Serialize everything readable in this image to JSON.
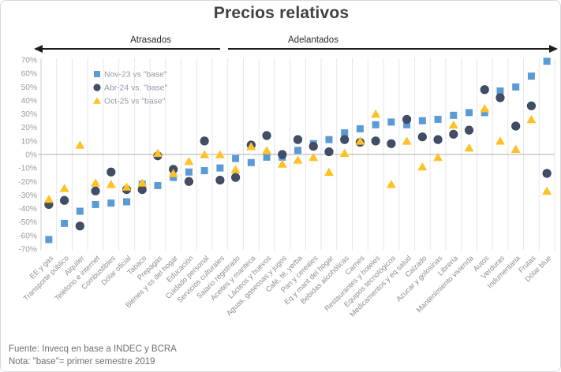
{
  "title": "Precios relativos",
  "annotations": {
    "left_label": "Atrasados",
    "right_label": "Adelantados"
  },
  "legend": [
    {
      "label": "Nov-23 vs \"base\"",
      "marker": "square",
      "color": "#5B9BD5"
    },
    {
      "label": "Abr-24 vs. \"base\"",
      "marker": "circle",
      "color": "#424D66"
    },
    {
      "label": "Oct-25 vs \"base\"",
      "marker": "triangle",
      "color": "#FFC125"
    }
  ],
  "chart_data": {
    "type": "scatter",
    "title": "Precios relativos",
    "xlabel": "",
    "ylabel": "",
    "ylim": [
      -70,
      70
    ],
    "ytick_step": 10,
    "ytick_format": "percent",
    "grid": "vertical-only",
    "zero_line": true,
    "legend_position": "inside-top-left",
    "group_annotations": [
      "Atrasados",
      "Adelantados"
    ],
    "categories": [
      "EE y gas",
      "Transporte público",
      "Alquiler",
      "Teléfono e internet",
      "Combustibles",
      "Dólar oficial",
      "Tabaco",
      "Prepagas",
      "Bienes y ss del hogar",
      "Educación",
      "Cuidado personal",
      "Servicios culturales",
      "Salario registrado",
      "Aceites y manteca",
      "Lácteos y huevos",
      "Aguas, gaseosas y jugos",
      "Café, té, yerba",
      "Pan y cereales",
      "Eq y mant del hogar",
      "Bebidas alcohólicas",
      "Carnes",
      "Restaurantes y hoteles",
      "Equipos tecnológicos",
      "Medicamentos y eq salud",
      "Calzado",
      "Azucar y golosinas",
      "Librería",
      "Mantenimiento vivienda",
      "Autos",
      "Verduras",
      "Indumentaria",
      "Frutas",
      "Dólar blue"
    ],
    "series": [
      {
        "name": "Nov-23 vs \"base\"",
        "marker": "square",
        "color": "#5B9BD5",
        "values": [
          -63,
          -51,
          -42,
          -37,
          -36,
          -35,
          -22,
          -23,
          -17,
          -13,
          -12,
          -10,
          -3,
          -6,
          -2,
          -2,
          3,
          8,
          11,
          16,
          19,
          22,
          24,
          22,
          25,
          26,
          29,
          31,
          31,
          47,
          50,
          58,
          69
        ]
      },
      {
        "name": "Abr-24 vs. \"base\"",
        "marker": "circle",
        "color": "#424D66",
        "values": [
          -37,
          -34,
          -53,
          -27,
          -13,
          -26,
          -26,
          -1,
          -11,
          -20,
          10,
          -19,
          -17,
          7,
          14,
          0,
          11,
          6,
          2,
          11,
          9,
          10,
          8,
          26,
          13,
          11,
          15,
          18,
          48,
          42,
          21,
          36,
          -14
        ]
      },
      {
        "name": "Oct-25 vs \"base\"",
        "marker": "triangle",
        "color": "#FFC125",
        "values": [
          -33,
          -25,
          7,
          -21,
          -22,
          -24,
          -21,
          1,
          -14,
          -5,
          0,
          0,
          -11,
          6,
          3,
          -7,
          -4,
          -2,
          -13,
          1,
          10,
          30,
          -22,
          10,
          -9,
          -2,
          22,
          5,
          34,
          10,
          4,
          26,
          -27
        ]
      }
    ]
  },
  "footer": {
    "line1": "Fuente: Invecq en base a INDEC y BCRA",
    "line2": "Nota: \"base\"= primer semestre 2019"
  },
  "colors": {
    "series_nov23": "#5B9BD5",
    "series_abr24": "#424D66",
    "series_oct25": "#FFC125",
    "gridline": "#E4E6EB",
    "zero_line": "#BDBDC2",
    "axis_text": "#9B9B9B",
    "category_text": "#8D8D8D",
    "legend_text": "#939BA8",
    "title_text": "#414141",
    "arrow": "#1C1C1C"
  }
}
